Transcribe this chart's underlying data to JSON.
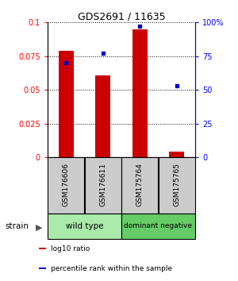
{
  "title": "GDS2691 / 11635",
  "samples": [
    "GSM176606",
    "GSM176611",
    "GSM175764",
    "GSM175765"
  ],
  "log10_ratio": [
    0.079,
    0.061,
    0.095,
    0.004
  ],
  "percentile_rank": [
    0.7,
    0.77,
    0.97,
    0.53
  ],
  "groups": [
    {
      "label": "wild type",
      "samples": [
        0,
        1
      ],
      "color": "#aaeaaa"
    },
    {
      "label": "dominant negative",
      "samples": [
        2,
        3
      ],
      "color": "#66cc66"
    }
  ],
  "ylim_left": [
    0,
    0.1
  ],
  "ylim_right": [
    0,
    1.0
  ],
  "yticks_left": [
    0,
    0.025,
    0.05,
    0.075,
    0.1
  ],
  "ytick_labels_left": [
    "0",
    "0.025",
    "0.05",
    "0.075",
    "0.1"
  ],
  "yticks_right": [
    0,
    0.25,
    0.5,
    0.75,
    1.0
  ],
  "ytick_labels_right": [
    "0",
    "25",
    "50",
    "75",
    "100%"
  ],
  "bar_color": "#cc0000",
  "dot_color": "#0000cc",
  "sample_box_color": "#cccccc",
  "legend_items": [
    {
      "color": "#cc0000",
      "label": "log10 ratio"
    },
    {
      "color": "#0000cc",
      "label": "percentile rank within the sample"
    }
  ]
}
